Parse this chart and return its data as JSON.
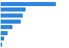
{
  "values": [
    33,
    15,
    13,
    12,
    7,
    4,
    2,
    1
  ],
  "bar_color": "#2e86de",
  "background_color": "#ffffff",
  "grid_color": "#e0e0e0",
  "figsize": [
    1.0,
    0.71
  ],
  "dpi": 100,
  "xlim_max": 40
}
